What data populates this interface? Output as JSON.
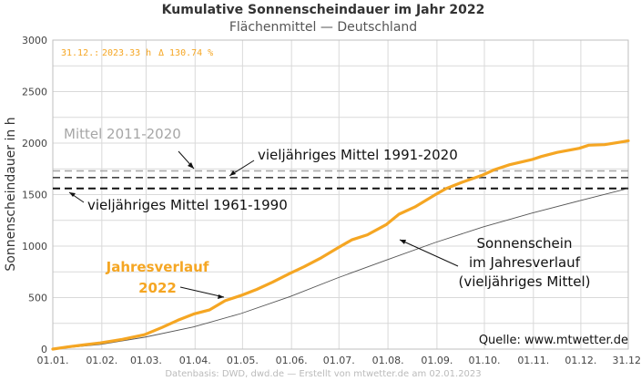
{
  "header": {
    "title": "Kumulative Sonnenscheindauer im Jahr 2022",
    "subtitle": "Flächenmittel — Deutschland"
  },
  "status": {
    "date": "31.12.:",
    "hours": "2023.33 h",
    "ratio": "Δ 130.74 %"
  },
  "source": "Quelle: www.mtwetter.de",
  "footer": "Datenbasis: DWD, dwd.de — Erstellt von mtwetter.de am 02.01.2023",
  "annotations": {
    "mean_2011_2020": "Mittel 2011-2020",
    "mean_1991_2020": "vieljähriges Mittel 1991-2020",
    "mean_1961_1990": "vieljähriges Mittel 1961-1990",
    "curve_2022_line1": "Jahresverlauf",
    "curve_2022_line2": "2022",
    "clim_line1": "Sonnenschein",
    "clim_line2": "im Jahresverlauf",
    "clim_line3": "(vieljähriges Mittel)"
  },
  "colors": {
    "series_2022": "#f5a623",
    "series_clim": "#555555",
    "mean_2011_2020": "#a6a6a6",
    "mean_1991_2020": "#444444",
    "mean_1961_1990": "#111111",
    "grid": "#d9d9d9"
  },
  "chart_data": {
    "type": "line",
    "title": "Kumulative Sonnenscheindauer im Jahr 2022",
    "subtitle": "Flächenmittel — Deutschland",
    "ylabel": "Sonnenscheindauer in h",
    "ylim": [
      0,
      3000
    ],
    "yticks": [
      0,
      500,
      1000,
      1500,
      2000,
      2500,
      3000
    ],
    "xlim": [
      1,
      365
    ],
    "xticks": [
      {
        "day": 1,
        "label": "01.01."
      },
      {
        "day": 32,
        "label": "01.02."
      },
      {
        "day": 60,
        "label": "01.03."
      },
      {
        "day": 91,
        "label": "01.04."
      },
      {
        "day": 121,
        "label": "01.05."
      },
      {
        "day": 152,
        "label": "01.06."
      },
      {
        "day": 182,
        "label": "01.07."
      },
      {
        "day": 213,
        "label": "01.08."
      },
      {
        "day": 244,
        "label": "01.09."
      },
      {
        "day": 274,
        "label": "01.10."
      },
      {
        "day": 305,
        "label": "01.11."
      },
      {
        "day": 335,
        "label": "01.12."
      },
      {
        "day": 365,
        "label": "31.12."
      }
    ],
    "grid": true,
    "reference_lines": [
      {
        "name": "Mittel 2011-2020",
        "y": 1730
      },
      {
        "name": "vieljähriges Mittel 1991-2020",
        "y": 1665
      },
      {
        "name": "vieljähriges Mittel 1961-1990",
        "y": 1560
      }
    ],
    "series": [
      {
        "name": "Jahresverlauf 2022",
        "x": [
          1,
          10,
          20,
          31,
          45,
          59,
          70,
          80,
          90,
          100,
          110,
          120,
          130,
          140,
          151,
          160,
          170,
          181,
          190,
          200,
          212,
          220,
          230,
          243,
          250,
          260,
          273,
          280,
          290,
          304,
          310,
          320,
          334,
          340,
          350,
          360,
          365
        ],
        "y": [
          0,
          20,
          40,
          60,
          95,
          140,
          210,
          280,
          340,
          380,
          470,
          520,
          580,
          650,
          735,
          800,
          880,
          980,
          1060,
          1110,
          1210,
          1310,
          1380,
          1500,
          1560,
          1620,
          1690,
          1740,
          1790,
          1840,
          1870,
          1910,
          1950,
          1980,
          1985,
          2010,
          2023
        ]
      },
      {
        "name": "Sonnenschein im Jahresverlauf (vieljähriges Mittel)",
        "x": [
          1,
          31,
          59,
          90,
          120,
          151,
          181,
          212,
          243,
          273,
          304,
          334,
          365
        ],
        "y": [
          0,
          45,
          115,
          215,
          345,
          510,
          690,
          865,
          1035,
          1185,
          1320,
          1440,
          1560
        ]
      }
    ]
  }
}
